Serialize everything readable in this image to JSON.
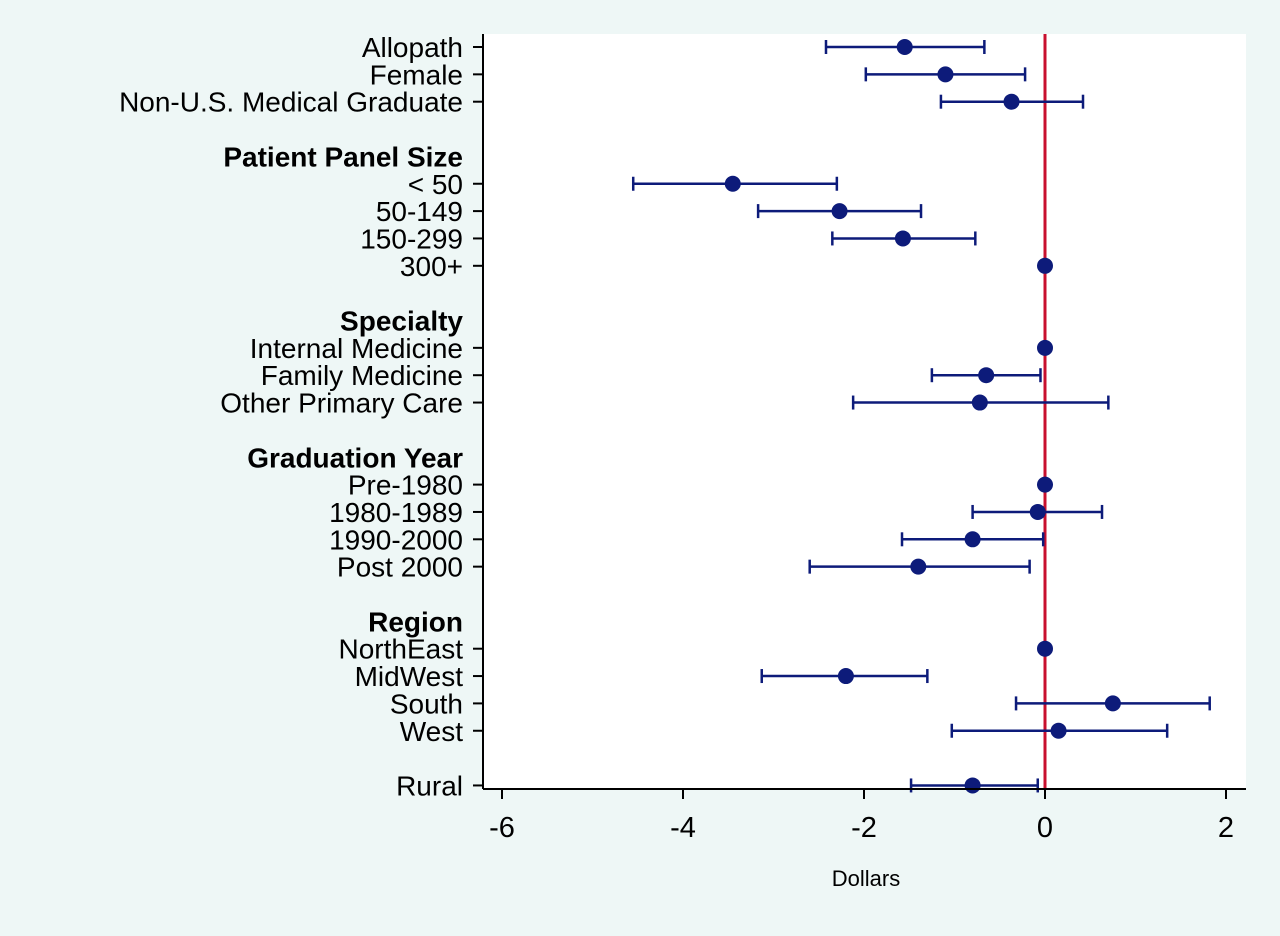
{
  "chart_data": {
    "type": "scatter",
    "subtype": "coefficient-plot",
    "title": "",
    "xlabel": "Dollars",
    "ylabel": "",
    "xlim": [
      -6.2,
      2.2
    ],
    "xticks": [
      -6,
      -4,
      -2,
      0,
      2
    ],
    "reference_line_x": 0,
    "grid": false,
    "colors": {
      "background": "#eef7f6",
      "plot_area": "#ffffff",
      "marker": "#0d1b7a",
      "reference_line": "#c8102e",
      "axis": "#000000"
    },
    "rows": [
      {
        "label": "Allopath",
        "estimate": -1.55,
        "ci_low": -2.42,
        "ci_high": -0.67
      },
      {
        "label": "Female",
        "estimate": -1.1,
        "ci_low": -1.98,
        "ci_high": -0.22
      },
      {
        "label": "Non-U.S. Medical Graduate",
        "estimate": -0.37,
        "ci_low": -1.15,
        "ci_high": 0.42
      },
      {
        "label": "Patient Panel Size",
        "header": true
      },
      {
        "label": "< 50",
        "estimate": -3.45,
        "ci_low": -4.55,
        "ci_high": -2.3
      },
      {
        "label": "50-149",
        "estimate": -2.27,
        "ci_low": -3.17,
        "ci_high": -1.37
      },
      {
        "label": "150-299",
        "estimate": -1.57,
        "ci_low": -2.35,
        "ci_high": -0.77
      },
      {
        "label": "300+",
        "estimate": 0
      },
      {
        "label": "Specialty",
        "header": true
      },
      {
        "label": "Internal Medicine",
        "estimate": 0
      },
      {
        "label": "Family Medicine",
        "estimate": -0.65,
        "ci_low": -1.25,
        "ci_high": -0.05
      },
      {
        "label": "Other Primary Care",
        "estimate": -0.72,
        "ci_low": -2.12,
        "ci_high": 0.7
      },
      {
        "label": "Graduation Year",
        "header": true
      },
      {
        "label": "Pre-1980",
        "estimate": 0
      },
      {
        "label": "1980-1989",
        "estimate": -0.08,
        "ci_low": -0.8,
        "ci_high": 0.63
      },
      {
        "label": "1990-2000",
        "estimate": -0.8,
        "ci_low": -1.58,
        "ci_high": -0.02
      },
      {
        "label": "Post 2000",
        "estimate": -1.4,
        "ci_low": -2.6,
        "ci_high": -0.17
      },
      {
        "label": "Region",
        "header": true
      },
      {
        "label": "NorthEast",
        "estimate": 0
      },
      {
        "label": "MidWest",
        "estimate": -2.2,
        "ci_low": -3.13,
        "ci_high": -1.3
      },
      {
        "label": "South",
        "estimate": 0.75,
        "ci_low": -0.32,
        "ci_high": 1.82
      },
      {
        "label": "West",
        "estimate": 0.15,
        "ci_low": -1.03,
        "ci_high": 1.35
      },
      {
        "label": "Rural",
        "estimate": -0.8,
        "ci_low": -1.48,
        "ci_high": -0.08
      }
    ]
  }
}
